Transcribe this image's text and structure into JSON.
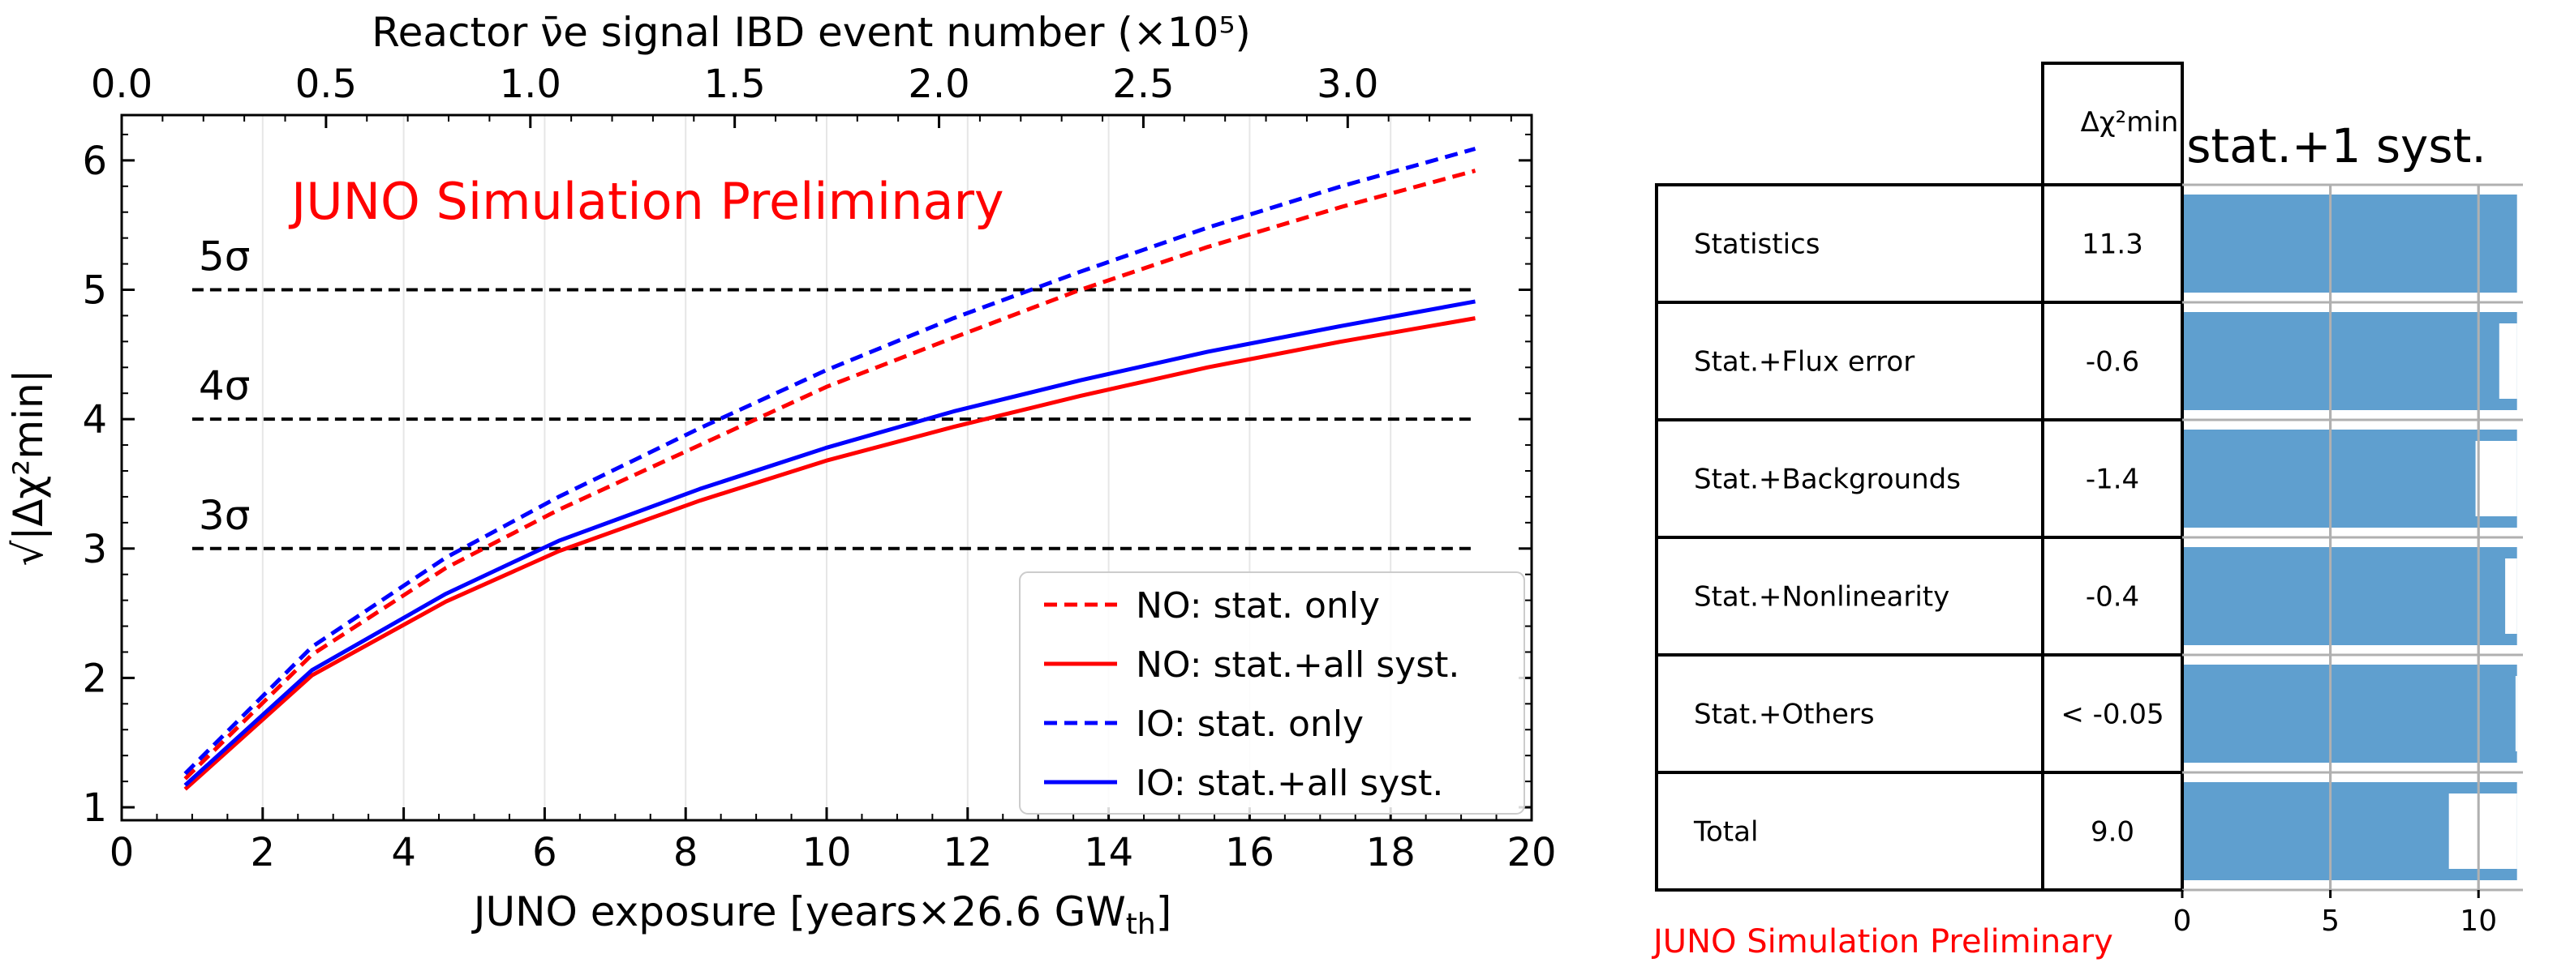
{
  "chart_data": [
    {
      "type": "line",
      "title": "",
      "watermark": "JUNO Simulation Preliminary",
      "xlabel": "JUNO exposure [years×26.6 GW",
      "xlabel_sub": "th",
      "xlabel_tail": "]",
      "ylabel": "√|Δχ²min|",
      "top_xlabel": "Reactor ν̄e signal IBD event number (×10⁵)",
      "xlim": [
        0,
        20
      ],
      "ylim": [
        0.9,
        6.35
      ],
      "xticks": [
        0,
        2,
        4,
        6,
        8,
        10,
        12,
        14,
        16,
        18,
        20
      ],
      "yticks": [
        1,
        2,
        3,
        4,
        5,
        6
      ],
      "top_xlim": [
        0,
        3.45
      ],
      "top_xticks": [
        0.0,
        0.5,
        1.0,
        1.5,
        2.0,
        2.5,
        3.0
      ],
      "top_xticklabels": [
        "0.0",
        "0.5",
        "1.0",
        "1.5",
        "2.0",
        "2.5",
        "3.0"
      ],
      "sigma_lines": [
        {
          "y": 3,
          "label": "3σ"
        },
        {
          "y": 4,
          "label": "4σ"
        },
        {
          "y": 5,
          "label": "5σ"
        }
      ],
      "sigma_x_range": [
        1.0,
        19.2
      ],
      "series": [
        {
          "name": "NO: stat. only",
          "color": "#ff0000",
          "dash": true,
          "x": [
            0.9,
            2.7,
            4.6,
            6.2,
            8.2,
            10.0,
            11.8,
            13.6,
            15.4,
            17.3,
            19.2
          ],
          "y": [
            1.22,
            2.18,
            2.85,
            3.3,
            3.8,
            4.25,
            4.63,
            5.0,
            5.33,
            5.64,
            5.92
          ]
        },
        {
          "name": "NO: stat.+all syst.",
          "color": "#ff0000",
          "dash": false,
          "x": [
            0.9,
            2.7,
            4.6,
            6.2,
            8.2,
            10.0,
            11.8,
            13.6,
            15.4,
            17.3,
            19.2
          ],
          "y": [
            1.14,
            2.02,
            2.59,
            2.98,
            3.37,
            3.68,
            3.94,
            4.18,
            4.4,
            4.6,
            4.78
          ]
        },
        {
          "name": "IO: stat. only",
          "color": "#0000ff",
          "dash": true,
          "x": [
            0.9,
            2.7,
            4.6,
            6.2,
            8.2,
            10.0,
            11.8,
            13.6,
            15.4,
            17.3,
            19.2
          ],
          "y": [
            1.26,
            2.24,
            2.93,
            3.4,
            3.93,
            4.38,
            4.78,
            5.14,
            5.48,
            5.8,
            6.09
          ]
        },
        {
          "name": "IO: stat.+all syst.",
          "color": "#0000ff",
          "dash": false,
          "x": [
            0.9,
            2.7,
            4.6,
            6.2,
            8.2,
            10.0,
            11.8,
            13.6,
            15.4,
            17.3,
            19.2
          ],
          "y": [
            1.17,
            2.06,
            2.65,
            3.06,
            3.46,
            3.78,
            4.06,
            4.3,
            4.52,
            4.72,
            4.91
          ]
        }
      ]
    },
    {
      "type": "table",
      "title": "stat.+1 syst.",
      "column_header": "Δχ²min",
      "xlim": [
        0,
        11.5
      ],
      "xticks": [
        0,
        5,
        10
      ],
      "gridlines_x": [
        5,
        10
      ],
      "watermark": "JUNO Simulation Preliminary",
      "bar_color": "#5f9fcf",
      "rows": [
        {
          "label": "Statistics",
          "value_text": "11.3",
          "bar": 11.3,
          "gap": 0
        },
        {
          "label": "Stat.+Flux error",
          "value_text": "-0.6",
          "bar": 11.3,
          "gap": 0.6
        },
        {
          "label": "Stat.+Backgrounds",
          "value_text": "-1.4",
          "bar": 11.3,
          "gap": 1.4
        },
        {
          "label": "Stat.+Nonlinearity",
          "value_text": "-0.4",
          "bar": 11.3,
          "gap": 0.4
        },
        {
          "label": "Stat.+Others",
          "value_text": "< -0.05",
          "bar": 11.3,
          "gap": 0.05
        },
        {
          "label": "Total",
          "value_text": "9.0",
          "bar": 11.3,
          "gap": 2.3
        }
      ]
    }
  ]
}
